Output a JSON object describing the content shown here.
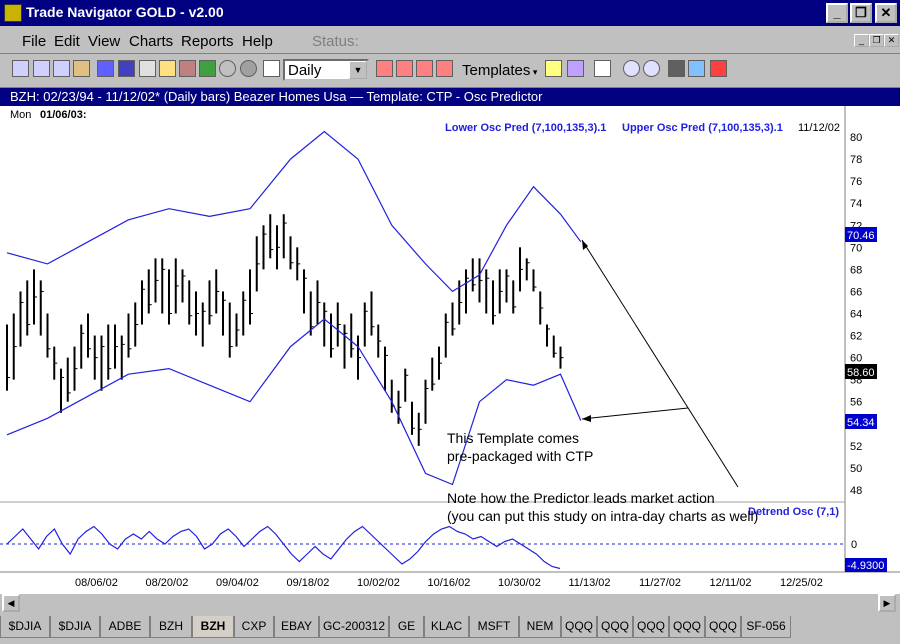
{
  "window": {
    "title": "Trade Navigator GOLD - v2.00"
  },
  "menu": {
    "items": [
      "File",
      "Edit",
      "View",
      "Charts",
      "Reports",
      "Help"
    ],
    "status_label": "Status:"
  },
  "toolbar": {
    "period": "Daily",
    "templates_label": "Templates"
  },
  "chart_header": {
    "text": "BZH:  02/23/94 - 11/12/02*  (Daily bars)   Beazer Homes Usa  —  Template: CTP - Osc Predictor"
  },
  "chart_data": {
    "type": "ohlc",
    "cursor_label": "Mon",
    "cursor_date": "01/06/03:",
    "legend": [
      "Lower Osc Pred (7,100,135,3).1",
      "Upper Osc Pred (7,100,135,3).1"
    ],
    "last_date": "11/12/02",
    "lower_legend": "Detrend Osc (7,1)",
    "price_axis": {
      "ticks": [
        48,
        50,
        52,
        54,
        56,
        58,
        60,
        62,
        64,
        66,
        68,
        70,
        72,
        74,
        76,
        78,
        80
      ],
      "tick_labels": [
        "48",
        "50",
        "52",
        "54",
        "56",
        "58",
        "60",
        "62",
        "64",
        "66",
        "68",
        "70",
        "72",
        "74",
        "76",
        "78",
        "80"
      ],
      "ylim": [
        47,
        81
      ]
    },
    "value_tags": {
      "upper": "70.46",
      "close": "58.60",
      "lower": "54.34",
      "osc": "-4.9300",
      "osc_zero": "0"
    },
    "x_ticks": [
      "08/06/02",
      "08/20/02",
      "09/04/02",
      "09/18/02",
      "10/02/02",
      "10/16/02",
      "10/30/02",
      "11/13/02",
      "11/27/02",
      "12/11/02",
      "12/25/02"
    ],
    "bars": [
      [
        57,
        63
      ],
      [
        58,
        64
      ],
      [
        61,
        66
      ],
      [
        62,
        67
      ],
      [
        63,
        68
      ],
      [
        62,
        67
      ],
      [
        60,
        64
      ],
      [
        58,
        61
      ],
      [
        55,
        59
      ],
      [
        56,
        60
      ],
      [
        57,
        61
      ],
      [
        59,
        63
      ],
      [
        60,
        64
      ],
      [
        58,
        62
      ],
      [
        57,
        62
      ],
      [
        58,
        63
      ],
      [
        59,
        63
      ],
      [
        58,
        62
      ],
      [
        60,
        64
      ],
      [
        61,
        65
      ],
      [
        63,
        67
      ],
      [
        64,
        68
      ],
      [
        65,
        69
      ],
      [
        64,
        69
      ],
      [
        63,
        68
      ],
      [
        64,
        69
      ],
      [
        65,
        68
      ],
      [
        63,
        67
      ],
      [
        62,
        66
      ],
      [
        61,
        65
      ],
      [
        63,
        67
      ],
      [
        64,
        68
      ],
      [
        62,
        66
      ],
      [
        60,
        65
      ],
      [
        61,
        64
      ],
      [
        62,
        66
      ],
      [
        63,
        68
      ],
      [
        66,
        71
      ],
      [
        68,
        72
      ],
      [
        69,
        73
      ],
      [
        68,
        72
      ],
      [
        69,
        73
      ],
      [
        68,
        71
      ],
      [
        67,
        70
      ],
      [
        64,
        68
      ],
      [
        62,
        66
      ],
      [
        63,
        67
      ],
      [
        61,
        65
      ],
      [
        60,
        64
      ],
      [
        61,
        65
      ],
      [
        59,
        63
      ],
      [
        60,
        64
      ],
      [
        58,
        62
      ],
      [
        61,
        65
      ],
      [
        62,
        66
      ],
      [
        60,
        63
      ],
      [
        57,
        61
      ],
      [
        55,
        58
      ],
      [
        54,
        57
      ],
      [
        56,
        59
      ],
      [
        53,
        56
      ],
      [
        52,
        55
      ],
      [
        54,
        58
      ],
      [
        57,
        60
      ],
      [
        58,
        61
      ],
      [
        60,
        64
      ],
      [
        62,
        65
      ],
      [
        63,
        67
      ],
      [
        64,
        68
      ],
      [
        66,
        69
      ],
      [
        65,
        69
      ],
      [
        64,
        68
      ],
      [
        63,
        67
      ],
      [
        64,
        68
      ],
      [
        65,
        68
      ],
      [
        64,
        67
      ],
      [
        66,
        70
      ],
      [
        67,
        69
      ],
      [
        66,
        68
      ],
      [
        63,
        66
      ],
      [
        61,
        63
      ],
      [
        60,
        62
      ],
      [
        59,
        61
      ]
    ],
    "upper_band": [
      [
        0,
        69.5
      ],
      [
        6,
        68.5
      ],
      [
        12,
        70.5
      ],
      [
        18,
        72.5
      ],
      [
        24,
        73.5
      ],
      [
        30,
        72.8
      ],
      [
        36,
        73.5
      ],
      [
        42,
        78
      ],
      [
        47,
        80.5
      ],
      [
        52,
        78
      ],
      [
        57,
        72
      ],
      [
        62,
        68.5
      ],
      [
        66,
        66
      ],
      [
        70,
        67.5
      ],
      [
        74,
        72
      ],
      [
        78,
        75.5
      ],
      [
        82,
        73
      ],
      [
        85,
        70.5
      ]
    ],
    "lower_band": [
      [
        0,
        53
      ],
      [
        6,
        54.5
      ],
      [
        12,
        56.5
      ],
      [
        18,
        58.5
      ],
      [
        24,
        59
      ],
      [
        30,
        57.5
      ],
      [
        36,
        56
      ],
      [
        42,
        61
      ],
      [
        47,
        63.5
      ],
      [
        52,
        61
      ],
      [
        57,
        56
      ],
      [
        62,
        49.5
      ],
      [
        66,
        48.5
      ],
      [
        70,
        56
      ],
      [
        74,
        58
      ],
      [
        78,
        57.5
      ],
      [
        82,
        58.5
      ],
      [
        85,
        54.3
      ]
    ],
    "oscillator": [
      0,
      1.5,
      3,
      1,
      -1,
      1.5,
      3,
      0,
      -2,
      1,
      2.5,
      3.5,
      2,
      0,
      -1,
      1,
      2,
      1,
      2.5,
      1,
      0,
      1.5,
      2.5,
      3,
      1.5,
      -1,
      0,
      2,
      3,
      1.5,
      -0.5,
      1,
      2.5,
      3.5,
      2,
      0,
      -2,
      -3.5,
      -2,
      -0.5,
      -2,
      -3,
      -1,
      1,
      2.5,
      3.5,
      2,
      0.5,
      -1,
      -2.5,
      -4,
      -3,
      -1.5,
      0.5,
      2,
      3,
      3.5,
      2.5,
      2,
      1,
      1.5,
      0.5,
      -0.5,
      0.5,
      1,
      0,
      -1,
      -2,
      -3.5,
      -4.5,
      -4.9
    ]
  },
  "annotations": {
    "line1": "This Template comes",
    "line2": "pre-packaged with CTP",
    "line3": "Note how the Predictor leads market action",
    "line4": "(you can put this study on intra-day charts as well)"
  },
  "tabs": [
    "$DJIA",
    "$DJIA",
    "ADBE",
    "BZH",
    "BZH",
    "CXP",
    "EBAY",
    "GC-200312",
    "GE",
    "KLAC",
    "MSFT",
    "NEM",
    "QQQ",
    "QQQ",
    "QQQ",
    "QQQ",
    "QQQ",
    "SF-056"
  ],
  "active_tab": 4,
  "colors": {
    "title_bg": "#000080",
    "band": "#2020e0",
    "bars": "#000000",
    "tag_bg": "#0000cc"
  }
}
